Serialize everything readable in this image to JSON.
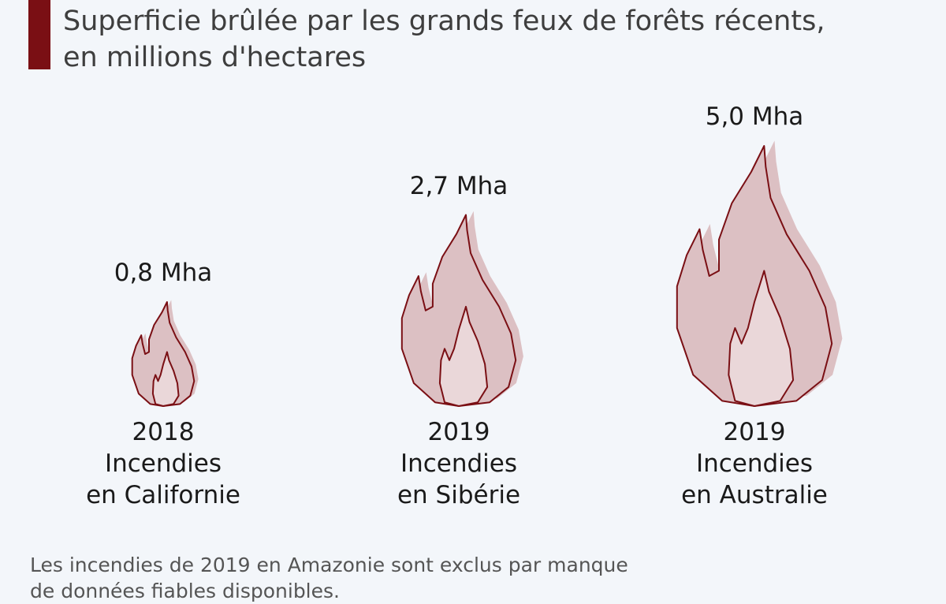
{
  "header": {
    "title_line1": "Superficie brûlée par les grands feux de forêts récents,",
    "title_line2": "en millions d'hectares"
  },
  "colors": {
    "accent": "#7a0f14",
    "flame_fill": "#dcc0c3",
    "flame_stroke": "#7a0f14"
  },
  "chart_data": {
    "type": "bar",
    "title": "Superficie brûlée par les grands feux de forêts récents, en millions d'hectares",
    "unit": "Mha",
    "categories": [
      [
        "2018",
        "Incendies",
        "en Californie"
      ],
      [
        "2019",
        "Incendies",
        "en Sibérie"
      ],
      [
        "2019",
        "Incendies",
        "en Australie"
      ]
    ],
    "values": [
      0.8,
      2.7,
      5.0
    ],
    "value_labels": [
      "0,8 Mha",
      "2,7 Mha",
      "5,0 Mha"
    ],
    "marker": "flame-icon",
    "grid": false,
    "legend": false
  },
  "footnote": {
    "line1": "Les incendies de 2019 en Amazonie sont exclus par manque",
    "line2": "de données fiables disponibles."
  }
}
